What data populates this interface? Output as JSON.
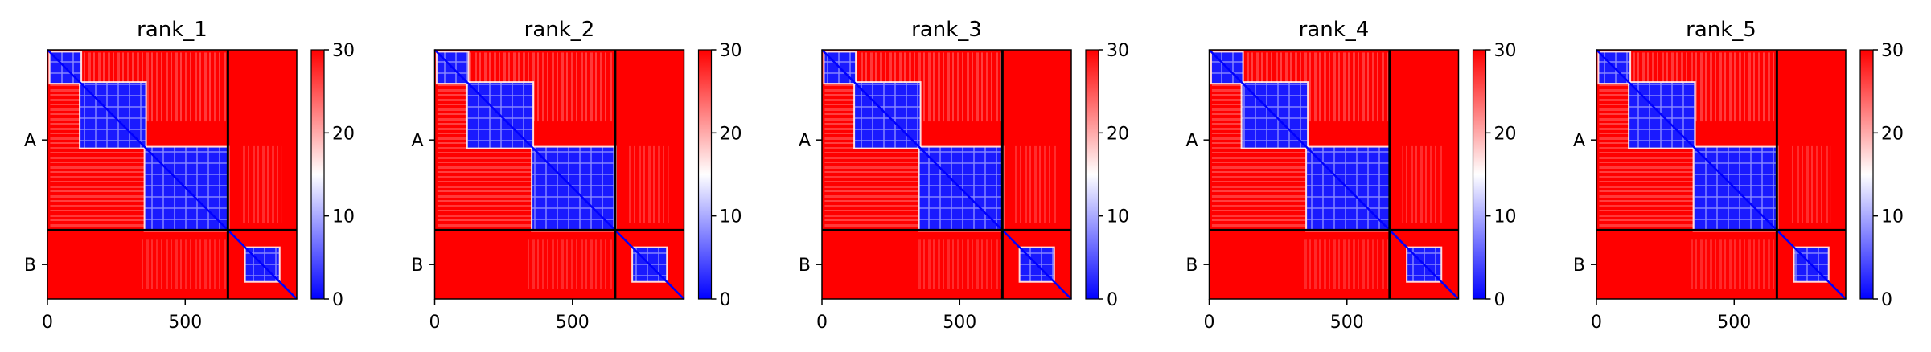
{
  "chart_data": {
    "type": "heatmap",
    "panels": [
      {
        "title": "rank_1"
      },
      {
        "title": "rank_2"
      },
      {
        "title": "rank_3"
      },
      {
        "title": "rank_4"
      },
      {
        "title": "rank_5"
      }
    ],
    "x_ticks": [
      0,
      500
    ],
    "xlim": [
      0,
      905
    ],
    "chains": [
      {
        "label": "A",
        "start": 0,
        "end": 655
      },
      {
        "label": "B",
        "start": 655,
        "end": 905
      }
    ],
    "domains": [
      {
        "start": 10,
        "end": 120
      },
      {
        "start": 120,
        "end": 355
      },
      {
        "start": 355,
        "end": 655
      },
      {
        "start": 720,
        "end": 840
      }
    ],
    "colorbar": {
      "range": [
        0,
        30
      ],
      "ticks": [
        0,
        10,
        20,
        30
      ]
    },
    "colors": {
      "low": "#0000ff",
      "mid": "#ffffff",
      "high": "#ff0000"
    }
  }
}
